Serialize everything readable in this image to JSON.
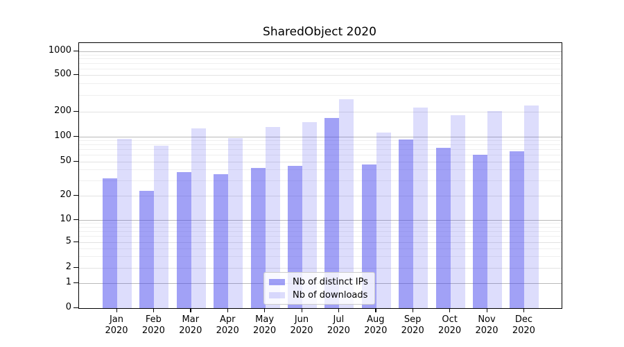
{
  "title": "SharedObject 2020",
  "legend": {
    "items": [
      {
        "label": "Nb of distinct IPs",
        "color": "rgba(68,68,238,0.5)"
      },
      {
        "label": "Nb of downloads",
        "color": "rgba(68,68,238,0.18)"
      }
    ]
  },
  "chart_data": {
    "type": "bar",
    "title": "SharedObject 2020",
    "categories": [
      "Jan",
      "Feb",
      "Mar",
      "Apr",
      "May",
      "Jun",
      "Jul",
      "Aug",
      "Sep",
      "Oct",
      "Nov",
      "Dec"
    ],
    "year": "2020",
    "series": [
      {
        "name": "Nb of distinct IPs",
        "color": "rgba(68,68,238,0.5)",
        "values": [
          32,
          23,
          38,
          36,
          42,
          45,
          168,
          46,
          93,
          74,
          61,
          67
        ]
      },
      {
        "name": "Nb of downloads",
        "color": "rgba(68,68,238,0.18)",
        "values": [
          94,
          78,
          126,
          96,
          131,
          150,
          273,
          112,
          222,
          182,
          204,
          234
        ]
      }
    ],
    "xlabel": "",
    "ylabel": "",
    "y_scale": "log-with-zero",
    "y_ticks": [
      0,
      1,
      2,
      5,
      10,
      20,
      50,
      100,
      200,
      500,
      1000
    ],
    "y_major_decades": [
      1,
      10,
      100,
      1000
    ],
    "ylim": [
      0,
      1000
    ],
    "grid": true,
    "legend_position": "lower center"
  }
}
